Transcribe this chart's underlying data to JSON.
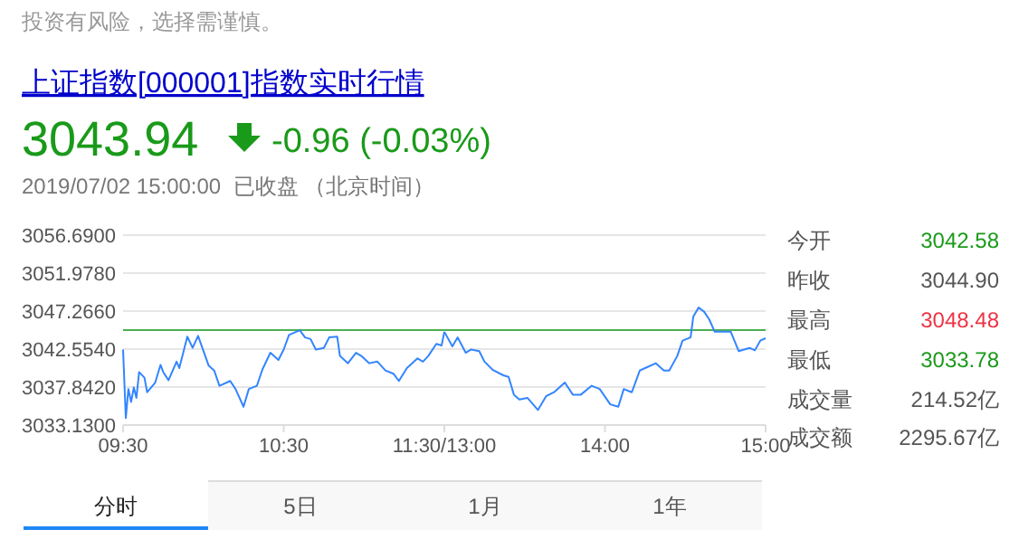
{
  "chart_data": [
    {
      "type": "line",
      "title": "上证指数[000001]指数实时行情",
      "annotations": [
        "投资有风险，选择需谨慎。",
        "3043.94",
        "-0.96 (-0.03%)",
        "2019/07/02 15:00:00  已收盘 （北京时间）"
      ],
      "x": [
        9.5,
        9.517,
        9.533,
        9.55,
        9.567,
        9.583,
        9.6,
        9.633,
        9.65,
        9.7,
        9.733,
        9.75,
        9.783,
        9.833,
        9.85,
        9.9,
        9.933,
        9.967,
        10.033,
        10.067,
        10.1,
        10.167,
        10.2,
        10.25,
        10.283,
        10.333,
        10.367,
        10.417,
        10.467,
        10.5,
        10.533,
        10.6,
        10.633,
        10.667,
        10.7,
        10.75,
        10.783,
        10.833,
        10.85,
        10.9,
        10.95,
        10.983,
        11.033,
        11.083,
        11.133,
        11.183,
        11.217,
        11.267,
        11.333,
        11.367,
        11.4,
        11.45,
        11.483,
        11.5
      ],
      "series": [
        {
          "color": "#3385ff",
          "values": [
            3042.5,
            3034.0,
            3037.6,
            3036.0,
            3037.8,
            3036.5,
            3039.7,
            3039.0,
            3037.2,
            3038.4,
            3040.6,
            3039.7,
            3038.7,
            3041.0,
            3040.2,
            3044.1,
            3042.7,
            3044.2,
            3040.5,
            3039.9,
            3038.0,
            3038.6,
            3037.6,
            3035.4,
            3037.6,
            3038.0,
            3040.0,
            3042.1,
            3041.2,
            3042.5,
            3044.3,
            3044.9,
            3044.0,
            3043.8,
            3042.5,
            3042.7,
            3044.0,
            3044.1,
            3041.7,
            3040.8,
            3042.1,
            3041.7,
            3040.8,
            3041.0,
            3039.9,
            3039.5,
            3038.6,
            3040.2,
            3041.4,
            3041.0,
            3041.7,
            3043.2,
            3043.0,
            3044.7
          ]
        }
      ],
      "xlim": [
        9.5,
        11.5
      ],
      "xticks": [
        {
          "value": 9.5,
          "label": "09:30"
        },
        {
          "value": 10.5,
          "label": "10:30"
        },
        {
          "value": 11.5,
          "label": "11:30/13:00"
        }
      ],
      "ylim": [
        3033.13,
        3056.69
      ],
      "yticks": [
        {
          "value": 3033.13,
          "label": "3033.1300"
        },
        {
          "value": 3037.842,
          "label": "3037.8420"
        },
        {
          "value": 3042.554,
          "label": "3042.5540"
        },
        {
          "value": 3047.266,
          "label": "3047.2660"
        },
        {
          "value": 3051.978,
          "label": "3051.9780"
        },
        {
          "value": 3056.69,
          "label": "3056.6900"
        }
      ],
      "grid": "y",
      "ref_lines": [
        {
          "axis": "y",
          "value": 3044.9,
          "color": "#4caf50"
        }
      ]
    },
    {
      "type": "line",
      "x": [
        13,
        13.05,
        13.083,
        13.133,
        13.167,
        13.217,
        13.25,
        13.3,
        13.367,
        13.4,
        13.433,
        13.467,
        13.517,
        13.583,
        13.633,
        13.683,
        13.75,
        13.8,
        13.85,
        13.917,
        13.967,
        14.033,
        14.083,
        14.117,
        14.167,
        14.217,
        14.25,
        14.317,
        14.367,
        14.4,
        14.45,
        14.483,
        14.533,
        14.55,
        14.583,
        14.617,
        14.65,
        14.683,
        14.75,
        14.783,
        14.833,
        14.9,
        14.933,
        14.967,
        15
      ],
      "series": [
        {
          "color": "#3385ff",
          "values": [
            3044.7,
            3042.9,
            3044.0,
            3042.1,
            3042.5,
            3042.3,
            3041.0,
            3040.0,
            3039.3,
            3039.1,
            3036.9,
            3036.3,
            3036.5,
            3035.0,
            3036.7,
            3037.2,
            3038.4,
            3036.9,
            3036.9,
            3038.0,
            3037.6,
            3035.7,
            3035.4,
            3037.6,
            3037.2,
            3039.9,
            3040.2,
            3040.8,
            3039.9,
            3039.9,
            3041.7,
            3043.6,
            3044.0,
            3046.6,
            3047.7,
            3047.2,
            3046.2,
            3044.7,
            3044.7,
            3044.7,
            3042.3,
            3042.7,
            3042.4,
            3043.6,
            3043.9
          ]
        }
      ],
      "xlim": [
        13,
        15
      ],
      "xticks": [
        {
          "value": 13,
          "label": null
        },
        {
          "value": 14,
          "label": "14:00"
        },
        {
          "value": 15,
          "label": "15:00"
        }
      ],
      "ylim": [
        3033.13,
        3056.69
      ],
      "yticks": [
        3033.13,
        3037.842,
        3042.554,
        3047.266,
        3051.978,
        3056.69
      ],
      "grid": "y",
      "tick_labels": "x",
      "ref_lines": [
        {
          "axis": "y",
          "value": 3044.9,
          "color": "#4caf50"
        }
      ]
    },
    {
      "type": "other",
      "categories": [
        "今开",
        "昨收",
        "最高",
        "最低",
        "成交量",
        "成交额"
      ],
      "value_labels": [
        "3042.58",
        "3044.90",
        "3048.48",
        "3033.78",
        "214.52亿",
        "2295.67亿"
      ],
      "colors": [
        "#1a9a1a",
        "#555555",
        "#ee3344",
        "#1a9a1a",
        "#555555",
        "#555555"
      ]
    },
    {
      "type": "other",
      "categories": [
        "分时",
        "5日",
        "1月",
        "1年"
      ]
    }
  ]
}
